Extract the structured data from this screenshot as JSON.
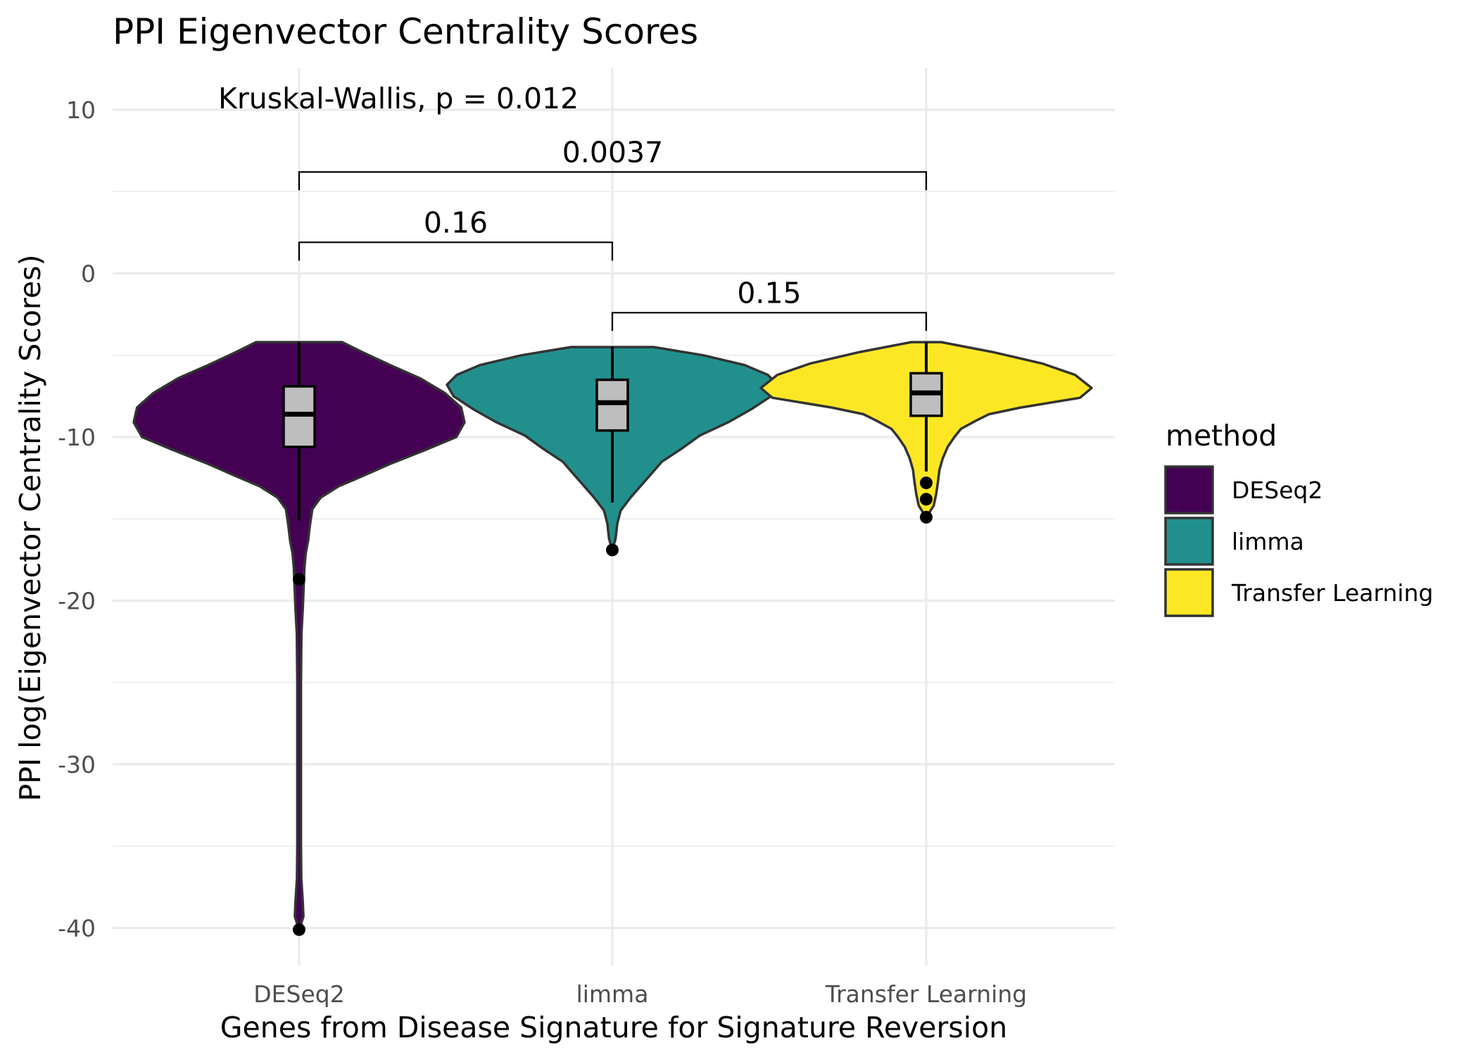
{
  "chart_data": {
    "type": "violin",
    "title": "PPI Eigenvector Centrality Scores",
    "xlabel": "Genes from Disease Signature for Signature Reversion",
    "ylabel": "PPI log(Eigenvector Centrality Scores)",
    "categories": [
      "DESeq2",
      "limma",
      "Transfer Learning"
    ],
    "ylim": [
      -42,
      12.5
    ],
    "yticks": [
      10,
      0,
      -10,
      -20,
      -30,
      -40
    ],
    "ytick_labels": [
      "10",
      "0",
      "-10",
      "-20",
      "-30",
      "-40"
    ],
    "grid": true,
    "legend": {
      "title": "method",
      "position": "right",
      "entries": [
        "DESeq2",
        "limma",
        "Transfer Learning"
      ]
    },
    "colors": {
      "DESeq2": "#440154",
      "limma": "#21908C",
      "Transfer Learning": "#FDE725",
      "box_fill": "#bebebe",
      "outline": "#333333"
    },
    "series": [
      {
        "name": "DESeq2",
        "box": {
          "q1": -10.6,
          "median": -8.6,
          "q3": -6.9,
          "whisker_low": -15.1,
          "whisker_high": -4.2
        },
        "outliers": [
          -18.7,
          -40.1
        ],
        "density": [
          [
            -4.2,
            0.26
          ],
          [
            -4.8,
            0.38
          ],
          [
            -5.6,
            0.55
          ],
          [
            -6.4,
            0.73
          ],
          [
            -7.3,
            0.88
          ],
          [
            -8.2,
            0.98
          ],
          [
            -9.1,
            1.0
          ],
          [
            -10.0,
            0.95
          ],
          [
            -10.8,
            0.76
          ],
          [
            -11.6,
            0.56
          ],
          [
            -12.4,
            0.38
          ],
          [
            -13.0,
            0.24
          ],
          [
            -13.7,
            0.13
          ],
          [
            -14.4,
            0.08
          ],
          [
            -15.4,
            0.065
          ],
          [
            -16.3,
            0.055
          ],
          [
            -17.1,
            0.04
          ],
          [
            -18.0,
            0.032
          ],
          [
            -19.0,
            0.028
          ],
          [
            -20.5,
            0.022
          ],
          [
            -22.0,
            0.014
          ],
          [
            -25.0,
            0.011
          ],
          [
            -30.0,
            0.011
          ],
          [
            -35.0,
            0.011
          ],
          [
            -37.0,
            0.013
          ],
          [
            -38.4,
            0.022
          ],
          [
            -39.3,
            0.026
          ],
          [
            -40.1,
            0.0
          ]
        ]
      },
      {
        "name": "limma",
        "box": {
          "q1": -9.6,
          "median": -7.9,
          "q3": -6.5,
          "whisker_low": -14.0,
          "whisker_high": -4.5
        },
        "outliers": [
          -16.9
        ],
        "density": [
          [
            -4.5,
            0.25
          ],
          [
            -5.0,
            0.55
          ],
          [
            -5.6,
            0.8
          ],
          [
            -6.2,
            0.94
          ],
          [
            -6.8,
            1.0
          ],
          [
            -7.5,
            0.96
          ],
          [
            -8.3,
            0.84
          ],
          [
            -9.1,
            0.7
          ],
          [
            -9.9,
            0.53
          ],
          [
            -10.7,
            0.42
          ],
          [
            -11.5,
            0.3
          ],
          [
            -12.2,
            0.24
          ],
          [
            -13.0,
            0.17
          ],
          [
            -13.7,
            0.11
          ],
          [
            -14.5,
            0.05
          ],
          [
            -15.3,
            0.03
          ],
          [
            -16.2,
            0.02
          ],
          [
            -16.9,
            0.0
          ]
        ]
      },
      {
        "name": "Transfer Learning",
        "box": {
          "q1": -8.7,
          "median": -7.3,
          "q3": -6.1,
          "whisker_low": -12.1,
          "whisker_high": -4.2
        },
        "outliers": [
          -12.8,
          -13.8,
          -14.9
        ],
        "density": [
          [
            -4.2,
            0.09
          ],
          [
            -4.8,
            0.4
          ],
          [
            -5.5,
            0.7
          ],
          [
            -6.2,
            0.9
          ],
          [
            -7.0,
            1.0
          ],
          [
            -7.6,
            0.93
          ],
          [
            -8.2,
            0.57
          ],
          [
            -8.6,
            0.38
          ],
          [
            -9.0,
            0.3
          ],
          [
            -9.5,
            0.21
          ],
          [
            -10.0,
            0.17
          ],
          [
            -10.6,
            0.13
          ],
          [
            -11.3,
            0.1
          ],
          [
            -12.0,
            0.08
          ],
          [
            -12.8,
            0.07
          ],
          [
            -13.5,
            0.06
          ],
          [
            -14.2,
            0.045
          ],
          [
            -14.9,
            0.0
          ]
        ]
      }
    ],
    "annotations": {
      "test_label": "Kruskal-Wallis, p = 0.012",
      "comparisons": [
        {
          "from": "DESeq2",
          "to": "Transfer Learning",
          "label": "0.0037",
          "y": 6.2
        },
        {
          "from": "DESeq2",
          "to": "limma",
          "label": "0.16",
          "y": 1.9
        },
        {
          "from": "limma",
          "to": "Transfer Learning",
          "label": "0.15",
          "y": -2.4
        }
      ]
    }
  }
}
